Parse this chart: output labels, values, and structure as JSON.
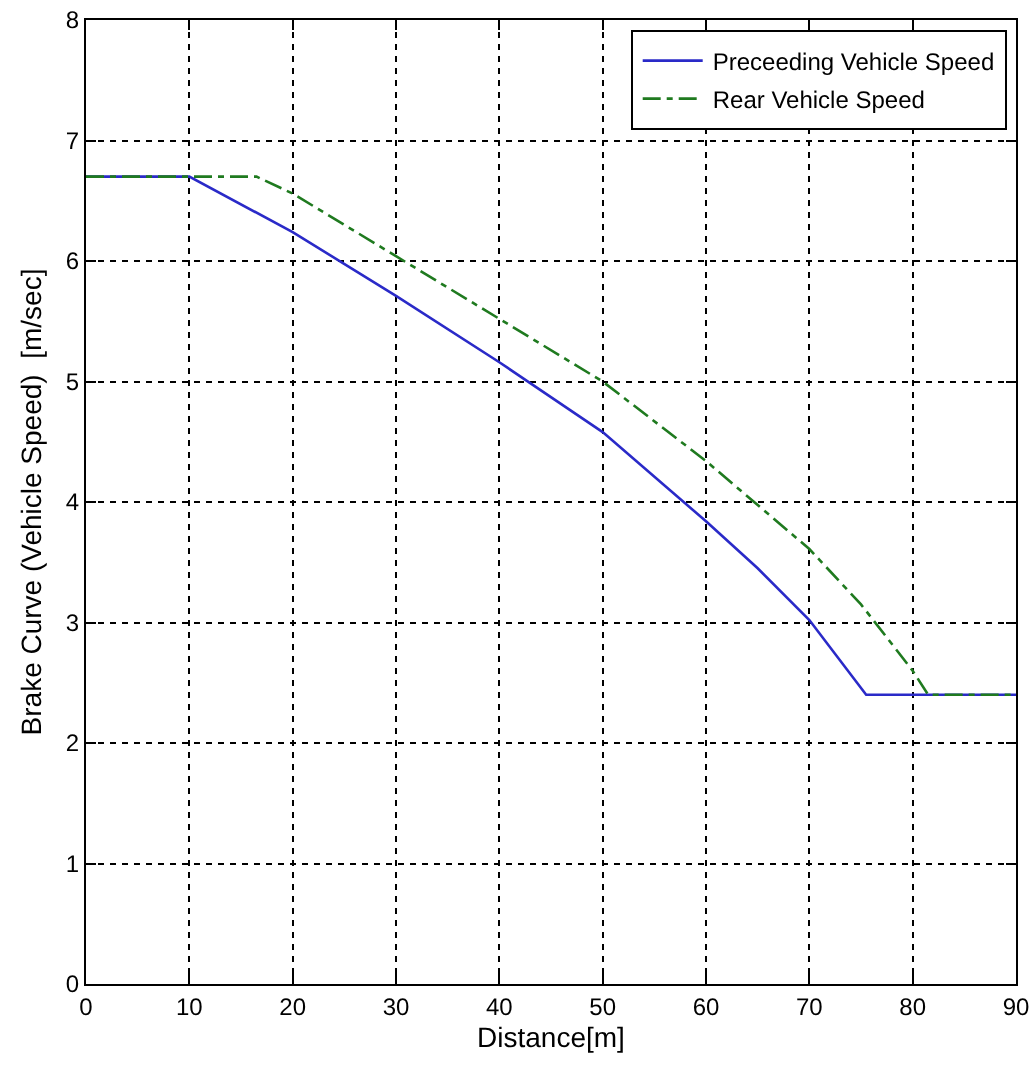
{
  "chart_data": {
    "type": "line",
    "xlabel": "Distance[m]",
    "ylabel": "Brake Curve (Vehicle Speed)  [m/sec]",
    "series": [
      {
        "name": "Preceeding Vehicle Speed",
        "color": "#2a2ac8",
        "line_style": "solid",
        "x": [
          0,
          10,
          20,
          30,
          40,
          50,
          60,
          65,
          70,
          75.5,
          90
        ],
        "values": [
          6.7,
          6.7,
          6.24,
          5.71,
          5.16,
          4.58,
          3.84,
          3.45,
          3.02,
          2.4,
          2.4
        ]
      },
      {
        "name": "Rear Vehicle Speed",
        "color": "#1f7a1f",
        "line_style": "dashdot",
        "x": [
          0,
          16.5,
          20,
          30,
          40,
          50,
          60,
          70,
          75,
          80,
          81.5,
          90
        ],
        "values": [
          6.7,
          6.7,
          6.56,
          6.04,
          5.52,
          5.0,
          4.34,
          3.61,
          3.15,
          2.6,
          2.4,
          2.4
        ]
      }
    ],
    "xlim": [
      0,
      90
    ],
    "xticks": [
      0,
      10,
      20,
      30,
      40,
      50,
      60,
      70,
      80,
      90
    ],
    "ylim": [
      0,
      8
    ],
    "yticks": [
      0,
      1,
      2,
      3,
      4,
      5,
      6,
      7,
      8
    ],
    "grid": true,
    "legend": "top right",
    "marker": "none"
  }
}
